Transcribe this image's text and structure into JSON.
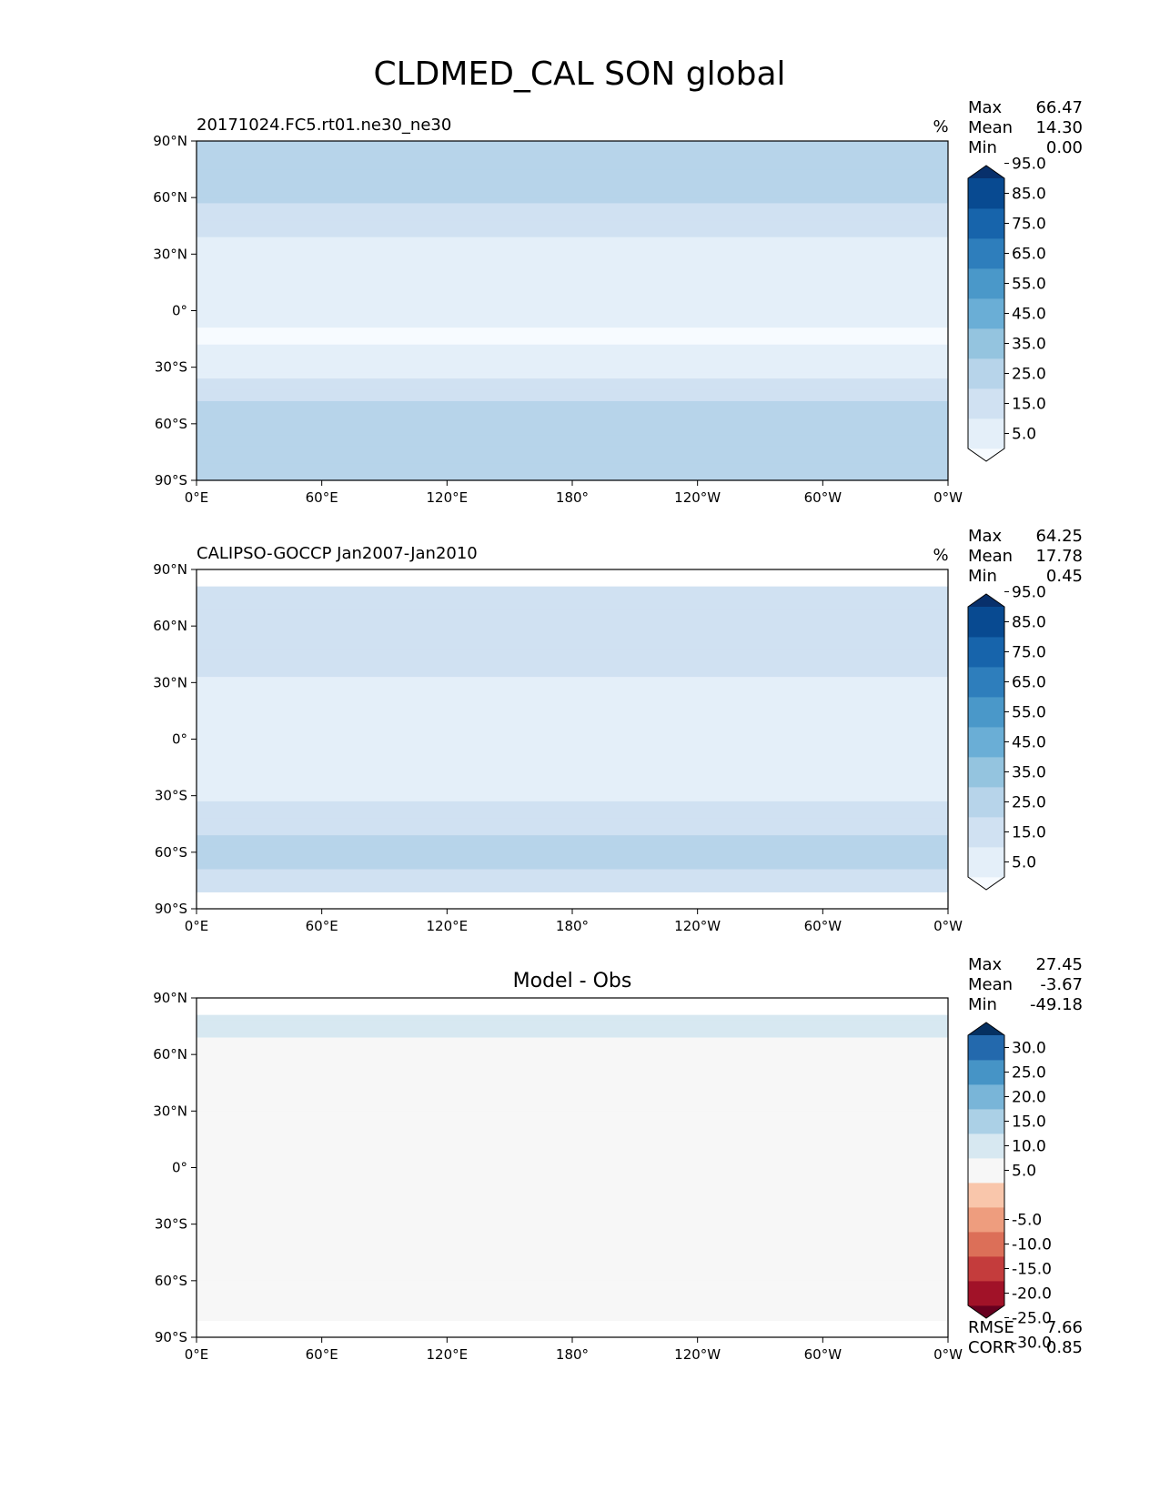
{
  "figure": {
    "title": "CLDMED_CAL SON global"
  },
  "chart_data": [
    {
      "type": "heatmap",
      "title": "20171024.FC5.rt01.ne30_ne30",
      "units": "%",
      "stats": {
        "max": "66.47",
        "mean": "14.30",
        "min": "0.00"
      },
      "colorbar_ticks": [
        "95.0",
        "85.0",
        "75.0",
        "65.0",
        "55.0",
        "45.0",
        "35.0",
        "25.0",
        "15.0",
        "5.0"
      ],
      "cmap": [
        "#f7fbff",
        "#e4eff9",
        "#d0e1f2",
        "#b7d4ea",
        "#94c4df",
        "#6aaed6",
        "#4a98c9",
        "#2e7ebc",
        "#1764ab",
        "#084a91",
        "#08306b"
      ],
      "xticks": [
        "0°E",
        "60°E",
        "120°E",
        "180°",
        "120°W",
        "60°W",
        "0°W"
      ],
      "yticks": [
        "90°N",
        "60°N",
        "30°N",
        "0°",
        "30°S",
        "60°S",
        "90°S"
      ],
      "xlim": [
        0,
        360
      ],
      "ylim": [
        -90,
        90
      ],
      "lat_profile": {
        "lat": [
          -90,
          -75,
          -60,
          -45,
          -30,
          -15,
          0,
          15,
          30,
          45,
          60,
          75,
          90
        ],
        "value": [
          28,
          30,
          30,
          23,
          9,
          4,
          6,
          5,
          10,
          18,
          26,
          28,
          28
        ]
      }
    },
    {
      "type": "heatmap",
      "title": "CALIPSO-GOCCP Jan2007-Jan2010",
      "units": "%",
      "stats": {
        "max": "64.25",
        "mean": "17.78",
        "min": "0.45"
      },
      "colorbar_ticks": [
        "95.0",
        "85.0",
        "75.0",
        "65.0",
        "55.0",
        "45.0",
        "35.0",
        "25.0",
        "15.0",
        "5.0"
      ],
      "cmap": [
        "#f7fbff",
        "#e4eff9",
        "#d0e1f2",
        "#b7d4ea",
        "#94c4df",
        "#6aaed6",
        "#4a98c9",
        "#2e7ebc",
        "#1764ab",
        "#084a91",
        "#08306b"
      ],
      "xticks": [
        "0°E",
        "60°E",
        "120°E",
        "180°",
        "120°W",
        "60°W",
        "0°W"
      ],
      "yticks": [
        "90°N",
        "60°N",
        "30°N",
        "0°",
        "30°S",
        "60°S",
        "90°S"
      ],
      "xlim": [
        0,
        360
      ],
      "ylim": [
        -90,
        90
      ],
      "lat_coverage": [
        -82,
        82
      ],
      "lat_profile": {
        "lat": [
          -90,
          -75,
          -60,
          -45,
          -30,
          -15,
          0,
          15,
          30,
          45,
          60,
          75,
          90
        ],
        "value": [
          22,
          24,
          27,
          24,
          12,
          10,
          14,
          10,
          14,
          20,
          24,
          22,
          22
        ]
      }
    },
    {
      "type": "heatmap",
      "title": "Model - Obs",
      "stats": {
        "max": "27.45",
        "mean": "-3.67",
        "min": "-49.18"
      },
      "colorbar_ticks": [
        "30.0",
        "25.0",
        "20.0",
        "15.0",
        "10.0",
        "5.0",
        "-5.0",
        "-10.0",
        "-15.0",
        "-20.0",
        "-25.0",
        "-30.0"
      ],
      "cmap": [
        "#67001f",
        "#a11228",
        "#c43c3c",
        "#dc6f58",
        "#ee9d7e",
        "#f9c6ab",
        "#f7f7f7",
        "#d7e8f1",
        "#abd0e6",
        "#79b5d8",
        "#4694c6",
        "#2369ad",
        "#053061"
      ],
      "xticks": [
        "0°E",
        "60°E",
        "120°E",
        "180°",
        "120°W",
        "60°W",
        "0°W"
      ],
      "yticks": [
        "90°N",
        "60°N",
        "30°N",
        "0°",
        "30°S",
        "60°S",
        "90°S"
      ],
      "xlim": [
        0,
        360
      ],
      "ylim": [
        -90,
        90
      ],
      "lat_coverage": [
        -82,
        82
      ],
      "lat_profile": {
        "lat": [
          -90,
          -75,
          -60,
          -45,
          -30,
          -15,
          0,
          15,
          30,
          45,
          60,
          75,
          90
        ],
        "value": [
          5,
          4,
          3,
          0,
          -2,
          -3,
          -5,
          -4,
          -3,
          -1,
          3,
          6,
          6
        ]
      },
      "rmse": "7.66",
      "corr": "0.85"
    }
  ],
  "stat_labels": {
    "max": "Max",
    "mean": "Mean",
    "min": "Min",
    "rmse": "RMSE",
    "corr": "CORR"
  }
}
